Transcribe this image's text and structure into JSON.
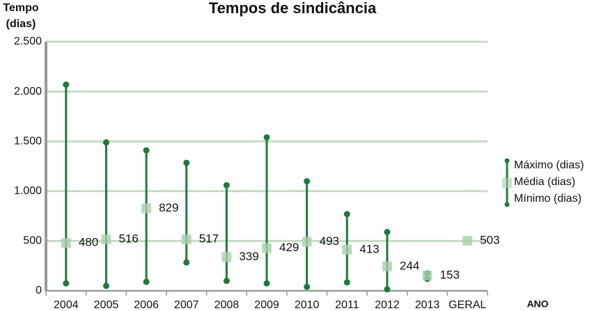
{
  "chart_data": {
    "type": "high-low-mean",
    "title": "Tempos de sindicância",
    "y_label": [
      "Tempo",
      "(dias)"
    ],
    "x_label": "ANO",
    "categories": [
      "2004",
      "2005",
      "2006",
      "2007",
      "2008",
      "2009",
      "2010",
      "2011",
      "2012",
      "2013",
      "GERAL"
    ],
    "series": [
      {
        "name": "Máximo (dias)",
        "color": "#1e7a3a",
        "values": [
          2070,
          1490,
          1410,
          1285,
          1060,
          1540,
          1100,
          770,
          590,
          175,
          null
        ]
      },
      {
        "name": "Média (dias)",
        "color": "#a9cfae",
        "values": [
          480,
          516,
          829,
          517,
          339,
          429,
          493,
          413,
          244,
          153,
          503
        ]
      },
      {
        "name": "Mínimo (dias)",
        "color": "#1e7a3a",
        "values": [
          75,
          50,
          90,
          285,
          100,
          75,
          40,
          85,
          15,
          120,
          null
        ]
      }
    ],
    "ylim": [
      0,
      2500
    ],
    "yticks": [
      0,
      500,
      {
        "value": 1000,
        "label": "1.000"
      },
      {
        "value": 1500,
        "label": "1.500"
      },
      {
        "value": 2000,
        "label": "2.000"
      },
      {
        "value": 2500,
        "label": "2.500"
      }
    ],
    "grid": true,
    "grid_color": "#c3dcc6",
    "legend": "right"
  }
}
